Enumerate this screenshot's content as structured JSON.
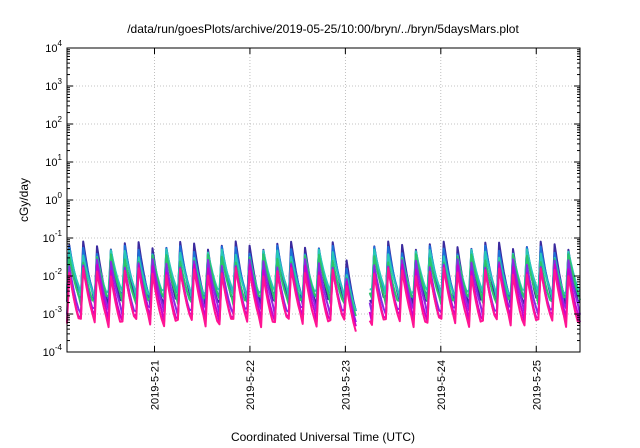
{
  "chart_data": {
    "type": "line",
    "title": "/data/run/goesPlots/archive/2019-05-25/10:00/bryn/../bryn/5daysMars.plot",
    "xlabel": "Coordinated Universal Time (UTC)",
    "ylabel": "cGy/day",
    "yscale": "log",
    "ylim": [
      0.0001,
      10000
    ],
    "xlim": [
      "2019-05-20 02:00",
      "2019-05-25 11:00"
    ],
    "grid": true,
    "y_ticks": [
      {
        "base": "10",
        "exp": "-4"
      },
      {
        "base": "10",
        "exp": "-3"
      },
      {
        "base": "10",
        "exp": "-2"
      },
      {
        "base": "10",
        "exp": "-1"
      },
      {
        "base": "10",
        "exp": "0"
      },
      {
        "base": "10",
        "exp": "1"
      },
      {
        "base": "10",
        "exp": "2"
      },
      {
        "base": "10",
        "exp": "3"
      },
      {
        "base": "10",
        "exp": "4"
      }
    ],
    "x_ticks": [
      "2019-5-21",
      "2019-5-22",
      "2019-5-23",
      "2019-5-24",
      "2019-5-25"
    ],
    "pattern": {
      "description": "sawtooth: sharp rise to peak then decay; ~37 cycles over 5.4 days",
      "cycles": 37,
      "gap_interval": [
        "2019-05-23 03:00",
        "2019-05-23 06:00"
      ],
      "dip_after_day3": true
    },
    "series": [
      {
        "color": "#3b2a9e",
        "peak": 0.065,
        "trough": 0.0021
      },
      {
        "color": "#1e6fd9",
        "peak": 0.05,
        "trough": 0.0029
      },
      {
        "color": "#28c8b8",
        "peak": 0.04,
        "trough": 0.0035
      },
      {
        "color": "#2cc46a",
        "peak": 0.03,
        "trough": 0.0023
      },
      {
        "color": "#8a2be2",
        "peak": 0.022,
        "trough": 0.0012
      },
      {
        "color": "#cc00cc",
        "peak": 0.016,
        "trough": 0.0008
      },
      {
        "color": "#ff1493",
        "peak": 0.013,
        "trough": 0.0006
      }
    ]
  }
}
